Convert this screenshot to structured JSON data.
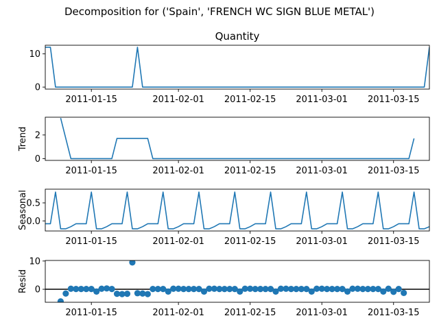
{
  "figure_title": "Decomposition for ('Spain', 'FRENCH WC SIGN BLUE METAL')",
  "colors": {
    "series": "#1f77b4",
    "axis": "#000000",
    "zero_line": "#000000"
  },
  "chart_data": [
    {
      "type": "line",
      "title": "Quantity",
      "ylabel": "",
      "x_range": [
        "2011-01-06",
        "2011-03-22"
      ],
      "ylim": [
        -0.6,
        12.6
      ],
      "yticks": [
        0,
        10
      ],
      "xticks": [
        "2011-01-15",
        "2011-02-01",
        "2011-02-15",
        "2011-03-01",
        "2011-03-15"
      ],
      "points": [
        [
          "2011-01-06",
          12
        ],
        [
          "2011-01-07",
          12
        ],
        [
          "2011-01-08",
          0
        ],
        [
          "2011-01-23",
          0
        ],
        [
          "2011-01-24",
          12
        ],
        [
          "2011-01-25",
          0
        ],
        [
          "2011-03-21",
          0
        ],
        [
          "2011-03-22",
          12
        ]
      ]
    },
    {
      "type": "line",
      "title": "",
      "ylabel": "Trend",
      "x_range": [
        "2011-01-06",
        "2011-03-22"
      ],
      "ylim": [
        -0.15,
        3.5
      ],
      "yticks": [
        0,
        2
      ],
      "xticks": [
        "2011-01-15",
        "2011-02-01",
        "2011-02-15",
        "2011-03-01",
        "2011-03-15"
      ],
      "points": [
        [
          "2011-01-09",
          3.43
        ],
        [
          "2011-01-11",
          0
        ],
        [
          "2011-01-19",
          0
        ],
        [
          "2011-01-20",
          1.71
        ],
        [
          "2011-01-26",
          1.71
        ],
        [
          "2011-01-27",
          0
        ],
        [
          "2011-03-18",
          0
        ],
        [
          "2011-03-19",
          1.71
        ]
      ]
    },
    {
      "type": "line",
      "title": "",
      "ylabel": "Seasonal",
      "x_range": [
        "2011-01-06",
        "2011-03-22"
      ],
      "ylim": [
        -0.28,
        0.88
      ],
      "yticks": [
        0.0,
        0.5
      ],
      "ytick_labels": [
        "0.0",
        "0.5"
      ],
      "xticks": [
        "2011-01-15",
        "2011-02-01",
        "2011-02-15",
        "2011-03-01",
        "2011-03-15"
      ],
      "period_days": 7,
      "anchor": "2011-01-06",
      "pattern": [
        -0.08,
        -0.08,
        0.8,
        -0.22,
        -0.22,
        -0.16,
        -0.08
      ]
    },
    {
      "type": "scatter",
      "title": "",
      "ylabel": "Resid",
      "x_range": [
        "2011-01-06",
        "2011-03-22"
      ],
      "ylim": [
        -4.6,
        10.2
      ],
      "yticks": [
        0,
        10
      ],
      "xticks": [
        "2011-01-15",
        "2011-02-01",
        "2011-02-15",
        "2011-03-01",
        "2011-03-15"
      ],
      "zero_line": true,
      "points": [
        [
          "2011-01-09",
          -4.3
        ],
        [
          "2011-01-10",
          -1.5
        ],
        [
          "2011-01-11",
          0.2
        ],
        [
          "2011-01-12",
          0.1
        ],
        [
          "2011-01-13",
          0.1
        ],
        [
          "2011-01-14",
          0.1
        ],
        [
          "2011-01-15",
          0.1
        ],
        [
          "2011-01-16",
          -0.8
        ],
        [
          "2011-01-17",
          0.2
        ],
        [
          "2011-01-18",
          0.3
        ],
        [
          "2011-01-19",
          0.1
        ],
        [
          "2011-01-20",
          -1.6
        ],
        [
          "2011-01-21",
          -1.7
        ],
        [
          "2011-01-22",
          -1.6
        ],
        [
          "2011-01-23",
          9.5
        ],
        [
          "2011-01-24",
          -1.4
        ],
        [
          "2011-01-25",
          -1.5
        ],
        [
          "2011-01-26",
          -1.7
        ],
        [
          "2011-01-27",
          0.1
        ],
        [
          "2011-01-28",
          0.1
        ],
        [
          "2011-01-29",
          0.1
        ],
        [
          "2011-01-30",
          -0.8
        ],
        [
          "2011-01-31",
          0.2
        ],
        [
          "2011-02-01",
          0.2
        ],
        [
          "2011-02-02",
          0.1
        ],
        [
          "2011-02-03",
          0.1
        ],
        [
          "2011-02-04",
          0.1
        ],
        [
          "2011-02-05",
          0.1
        ],
        [
          "2011-02-06",
          -0.8
        ],
        [
          "2011-02-07",
          0.2
        ],
        [
          "2011-02-08",
          0.2
        ],
        [
          "2011-02-09",
          0.1
        ],
        [
          "2011-02-10",
          0.1
        ],
        [
          "2011-02-11",
          0.1
        ],
        [
          "2011-02-12",
          0.1
        ],
        [
          "2011-02-13",
          -0.8
        ],
        [
          "2011-02-14",
          0.2
        ],
        [
          "2011-02-15",
          0.2
        ],
        [
          "2011-02-16",
          0.1
        ],
        [
          "2011-02-17",
          0.1
        ],
        [
          "2011-02-18",
          0.1
        ],
        [
          "2011-02-19",
          0.1
        ],
        [
          "2011-02-20",
          -0.8
        ],
        [
          "2011-02-21",
          0.2
        ],
        [
          "2011-02-22",
          0.2
        ],
        [
          "2011-02-23",
          0.1
        ],
        [
          "2011-02-24",
          0.1
        ],
        [
          "2011-02-25",
          0.1
        ],
        [
          "2011-02-26",
          0.1
        ],
        [
          "2011-02-27",
          -0.8
        ],
        [
          "2011-02-28",
          0.2
        ],
        [
          "2011-03-01",
          0.2
        ],
        [
          "2011-03-02",
          0.1
        ],
        [
          "2011-03-03",
          0.1
        ],
        [
          "2011-03-04",
          0.1
        ],
        [
          "2011-03-05",
          0.1
        ],
        [
          "2011-03-06",
          -0.8
        ],
        [
          "2011-03-07",
          0.2
        ],
        [
          "2011-03-08",
          0.2
        ],
        [
          "2011-03-09",
          0.1
        ],
        [
          "2011-03-10",
          0.1
        ],
        [
          "2011-03-11",
          0.1
        ],
        [
          "2011-03-12",
          0.1
        ],
        [
          "2011-03-13",
          -0.8
        ],
        [
          "2011-03-14",
          0.2
        ],
        [
          "2011-03-15",
          -0.9
        ],
        [
          "2011-03-16",
          0.1
        ],
        [
          "2011-03-17",
          -1.3
        ]
      ]
    }
  ]
}
